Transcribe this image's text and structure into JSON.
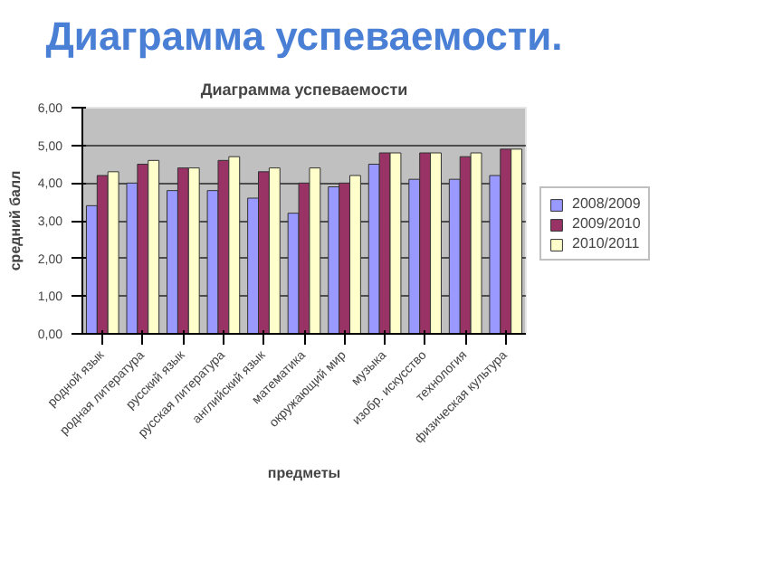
{
  "chart_data": {
    "type": "bar",
    "title": "Диаграмма успеваемости.",
    "subtitle": "Диаграмма успеваемости",
    "xlabel": "предметы",
    "ylabel": "средний балл",
    "categories": [
      "родной язык",
      "родная литература",
      "русский язык",
      "русская литература",
      "английский язык",
      "математика",
      "окружающий мир",
      "музыка",
      "изобр. искусство",
      "технология",
      "физическая культура"
    ],
    "series": [
      {
        "name": "2008/2009",
        "color": "#9999ff",
        "values": [
          3.4,
          4.0,
          3.8,
          3.8,
          3.6,
          3.2,
          3.9,
          4.5,
          4.1,
          4.1,
          4.2
        ]
      },
      {
        "name": "2009/2010",
        "color": "#993366",
        "values": [
          4.2,
          4.5,
          4.4,
          4.6,
          4.3,
          4.0,
          4.0,
          4.8,
          4.8,
          4.7,
          4.9
        ]
      },
      {
        "name": "2010/2011",
        "color": "#ffffcc",
        "values": [
          4.3,
          4.6,
          4.4,
          4.7,
          4.4,
          4.4,
          4.2,
          4.8,
          4.8,
          4.8,
          4.9
        ]
      }
    ],
    "ylim": [
      0,
      6
    ],
    "yticks": [
      {
        "value": 0,
        "label": "0,00"
      },
      {
        "value": 1,
        "label": "1,00"
      },
      {
        "value": 2,
        "label": "2,00"
      },
      {
        "value": 3,
        "label": "3,00"
      },
      {
        "value": 4,
        "label": "4,00"
      },
      {
        "value": 5,
        "label": "5,00"
      },
      {
        "value": 6,
        "label": "6,00"
      }
    ],
    "grid": "y",
    "legend": "right"
  }
}
